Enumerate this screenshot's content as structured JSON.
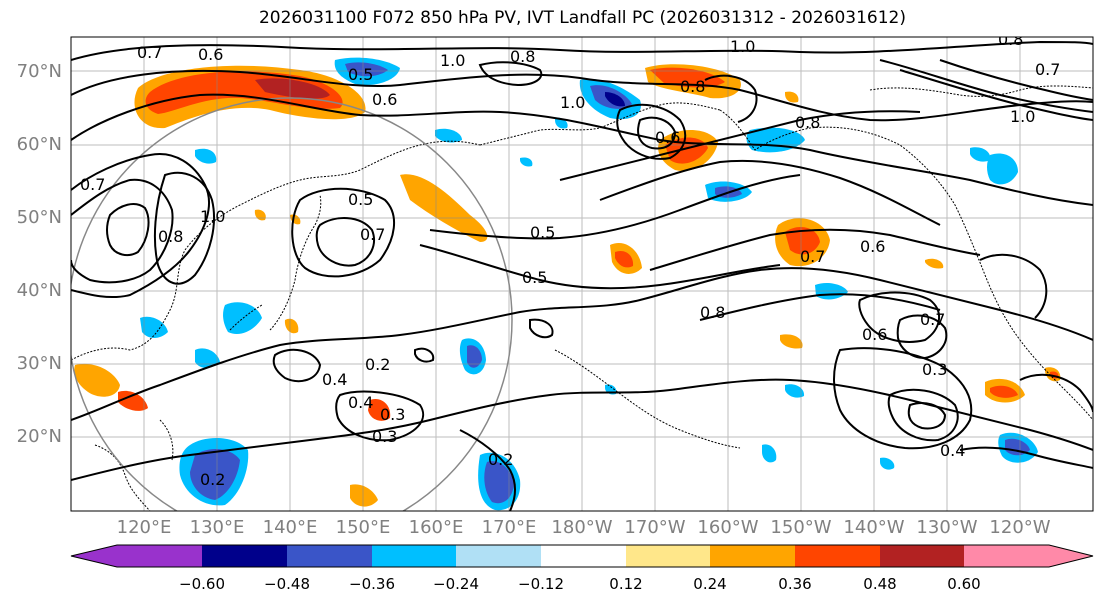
{
  "title": "2026031100 F072 850 hPa PV, IVT Landfall PC (2026031312 - 2026031612)",
  "lat_labels": [
    "70°N",
    "60°N",
    "50°N",
    "40°N",
    "30°N",
    "20°N"
  ],
  "lon_labels": [
    "120°E",
    "130°E",
    "140°E",
    "150°E",
    "160°E",
    "170°E",
    "180°W",
    "170°W",
    "160°W",
    "150°W",
    "140°W",
    "130°W",
    "120°W"
  ],
  "contour_labels": [
    "0.7",
    "0.6",
    "0.5",
    "1.0",
    "0.8",
    "0.6",
    "1.0",
    "0.6",
    "0.8",
    "1.0",
    "0.8",
    "0.5",
    "0.5",
    "0.5",
    "0.7",
    "1.0",
    "0.8",
    "0.7",
    "0.6",
    "0.7",
    "0.8",
    "0.6",
    "0.7",
    "0.3",
    "0.4",
    "0.2",
    "0.4",
    "0.3",
    "0.3",
    "0.2",
    "0.2",
    "0.4",
    "1.0",
    "0.8",
    "0.7"
  ],
  "colorbar": {
    "ticks": [
      "−0.60",
      "−0.48",
      "−0.36",
      "−0.24",
      "−0.12",
      "0.12",
      "0.24",
      "0.36",
      "0.48",
      "0.60"
    ],
    "colors": [
      "#9932cc",
      "#00008b",
      "#3a55c8",
      "#00bfff",
      "#b0e0f5",
      "#ffffff",
      "#ffe78a",
      "#ffa500",
      "#ff4500",
      "#b22222",
      "#ff89a8"
    ]
  }
}
